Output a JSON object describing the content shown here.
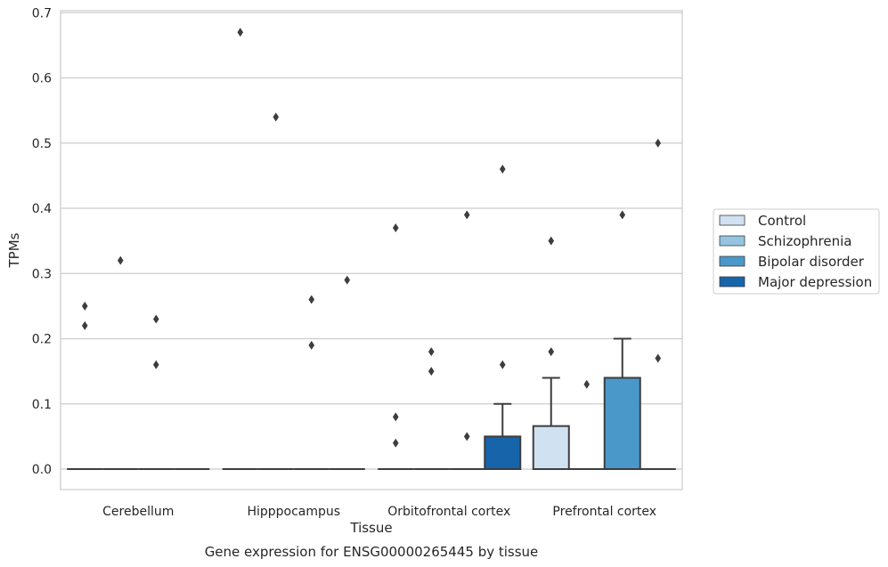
{
  "chart_data": {
    "type": "box",
    "xlabel": "Tissue",
    "ylabel": "TPMs",
    "caption": "Gene expression for ENSG00000265445 by tissue",
    "categories": [
      "Cerebellum",
      "Hipppocampus",
      "Orbitofrontal cortex",
      "Prefrontal cortex"
    ],
    "ylim": [
      -0.032,
      0.705
    ],
    "yticks": [
      "0.0",
      "0.1",
      "0.2",
      "0.3",
      "0.4",
      "0.5",
      "0.6",
      "0.7"
    ],
    "grid": true,
    "legend_position": "right",
    "series": [
      {
        "name": "Control",
        "color": "#d0e1f2",
        "boxes": [
          {
            "q1": 0,
            "median": 0,
            "q3": 0,
            "whisker_low": 0,
            "whisker_high": 0,
            "fliers": [
              0.25,
              0.22
            ]
          },
          {
            "q1": 0,
            "median": 0,
            "q3": 0,
            "whisker_low": 0,
            "whisker_high": 0,
            "fliers": [
              0.67
            ]
          },
          {
            "q1": 0,
            "median": 0,
            "q3": 0,
            "whisker_low": 0,
            "whisker_high": 0,
            "fliers": [
              0.37,
              0.08,
              0.04
            ]
          },
          {
            "q1": 0,
            "median": 0,
            "q3": 0.066,
            "whisker_low": 0,
            "whisker_high": 0.14,
            "fliers": [
              0.35,
              0.18
            ]
          }
        ]
      },
      {
        "name": "Schizophrenia",
        "color": "#94c4df",
        "boxes": [
          {
            "q1": 0,
            "median": 0,
            "q3": 0,
            "whisker_low": 0,
            "whisker_high": 0,
            "fliers": [
              0.32
            ]
          },
          {
            "q1": 0,
            "median": 0,
            "q3": 0,
            "whisker_low": 0,
            "whisker_high": 0,
            "fliers": [
              0.54
            ]
          },
          {
            "q1": 0,
            "median": 0,
            "q3": 0,
            "whisker_low": 0,
            "whisker_high": 0,
            "fliers": [
              0.18,
              0.15
            ]
          },
          {
            "q1": 0,
            "median": 0,
            "q3": 0,
            "whisker_low": 0,
            "whisker_high": 0,
            "fliers": [
              0.13
            ]
          }
        ]
      },
      {
        "name": "Bipolar disorder",
        "color": "#4a98c9",
        "boxes": [
          {
            "q1": 0,
            "median": 0,
            "q3": 0,
            "whisker_low": 0,
            "whisker_high": 0,
            "fliers": [
              0.23,
              0.16
            ]
          },
          {
            "q1": 0,
            "median": 0,
            "q3": 0,
            "whisker_low": 0,
            "whisker_high": 0,
            "fliers": [
              0.26,
              0.19
            ]
          },
          {
            "q1": 0,
            "median": 0,
            "q3": 0,
            "whisker_low": 0,
            "whisker_high": 0,
            "fliers": [
              0.39,
              0.05
            ]
          },
          {
            "q1": 0,
            "median": 0,
            "q3": 0.14,
            "whisker_low": 0,
            "whisker_high": 0.2,
            "fliers": [
              0.39
            ]
          }
        ]
      },
      {
        "name": "Major depression",
        "color": "#1764ab",
        "boxes": [
          {
            "q1": 0,
            "median": 0,
            "q3": 0,
            "whisker_low": 0,
            "whisker_high": 0,
            "fliers": []
          },
          {
            "q1": 0,
            "median": 0,
            "q3": 0,
            "whisker_low": 0,
            "whisker_high": 0,
            "fliers": [
              0.29
            ]
          },
          {
            "q1": 0,
            "median": 0,
            "q3": 0.05,
            "whisker_low": 0,
            "whisker_high": 0.1,
            "fliers": [
              0.46,
              0.16
            ]
          },
          {
            "q1": 0,
            "median": 0,
            "q3": 0,
            "whisker_low": 0,
            "whisker_high": 0,
            "fliers": [
              0.5,
              0.17
            ]
          }
        ]
      }
    ],
    "colors": {
      "grid": "#cccccc",
      "frame": "#cccccc",
      "box_edge": "#3d3d3d",
      "flier": "#3d3d3d"
    }
  }
}
